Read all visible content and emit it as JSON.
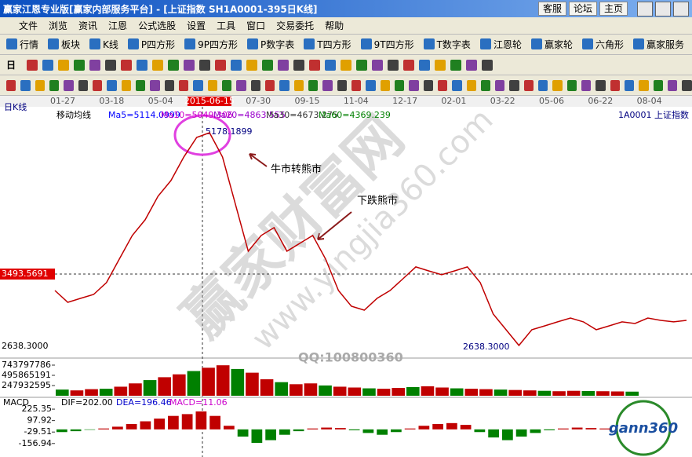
{
  "window": {
    "title": "赢家江恩专业版[赢家内部服务平台] - [上证指数    SH1A0001-395日K线]",
    "buttons": [
      "客服",
      "论坛",
      "主页"
    ]
  },
  "menu": [
    "文件",
    "浏览",
    "资讯",
    "江恩",
    "公式选股",
    "设置",
    "工具",
    "窗口",
    "交易委托",
    "帮助"
  ],
  "toolbar": [
    "行情",
    "板块",
    "K线",
    "P四方形",
    "9P四方形",
    "P数字表",
    "T四方形",
    "9T四方形",
    "T数字表",
    "江恩轮",
    "赢家轮",
    "六角形",
    "赢家服务"
  ],
  "period_button": "日",
  "chart_data": {
    "type": "stock",
    "period_label": "日K线",
    "dates": [
      "01-27",
      "03-18",
      "05-04",
      "2015-06-15",
      "07-30",
      "09-15",
      "11-04",
      "12-17",
      "02-01",
      "03-22",
      "05-06",
      "06-22",
      "08-04"
    ],
    "indicator": "移动均线",
    "ma_labels": [
      {
        "text": "Ma5=5114.0999",
        "color": "#0000ff"
      },
      {
        "text": "Ma10=5049.306",
        "color": "#cc00cc"
      },
      {
        "text": "Ma20=4863.555",
        "color": "#9900cc"
      },
      {
        "text": "Ma30=4673.275",
        "color": "#333333"
      },
      {
        "text": "Ma60=4369.239",
        "color": "#008000"
      }
    ],
    "symbol": "1A0001 上证指数",
    "high_label": "5178.1899",
    "low_label": "2638.3000",
    "annotations": [
      "牛市转熊市",
      "下跌熊市"
    ],
    "watermark": [
      "赢家财富网",
      "www.yingjia360.com"
    ],
    "qq": "QQ:100800360",
    "logo": "gann360",
    "price": {
      "color": "#c00000",
      "ylim": [
        2508,
        5344
      ],
      "yticks": [
        3493.5691,
        {
          "value": 2638.3,
          "label": "2638.3000"
        }
      ],
      "values": [
        3298,
        3159,
        3206,
        3252,
        3392,
        3671,
        3950,
        4136,
        4415,
        4601,
        4880,
        5112,
        5166,
        4880,
        4322,
        3764,
        3950,
        4043,
        3764,
        3857,
        3950,
        3671,
        3298,
        3112,
        3066,
        3206,
        3298,
        3438,
        3578,
        3531,
        3485,
        3531,
        3578,
        3392,
        3020,
        2834,
        2648,
        2834,
        2880,
        2927,
        2973,
        2927,
        2834,
        2880,
        2927,
        2908,
        2973,
        2945,
        2927,
        2945
      ]
    },
    "volume": {
      "ylim": [
        0,
        877000000
      ],
      "yticks": [
        743797786,
        495865191,
        247932595
      ],
      "values": [
        150000000,
        130000000,
        160000000,
        170000000,
        220000000,
        300000000,
        380000000,
        450000000,
        520000000,
        600000000,
        680000000,
        740000000,
        650000000,
        560000000,
        400000000,
        330000000,
        280000000,
        300000000,
        250000000,
        220000000,
        200000000,
        180000000,
        170000000,
        190000000,
        210000000,
        230000000,
        200000000,
        180000000,
        170000000,
        160000000,
        150000000,
        140000000,
        130000000,
        120000000,
        110000000,
        120000000,
        115000000,
        110000000,
        105000000,
        100000000
      ]
    },
    "macd": {
      "label": "MACD",
      "dif": "DIF=202.00",
      "dea": "DEA=196.46",
      "macd": "MACD=11.06",
      "ylim": [
        -290,
        322
      ],
      "yticks": [
        225.35,
        97.92,
        -29.51,
        -156.94
      ],
      "values": [
        -30,
        -20,
        -5,
        10,
        30,
        60,
        90,
        120,
        150,
        170,
        200,
        150,
        40,
        -80,
        -150,
        -120,
        -60,
        -20,
        10,
        20,
        15,
        -10,
        -40,
        -60,
        -30,
        10,
        40,
        60,
        70,
        50,
        -30,
        -90,
        -120,
        -80,
        -40,
        -10,
        10,
        20,
        15,
        10
      ]
    }
  }
}
